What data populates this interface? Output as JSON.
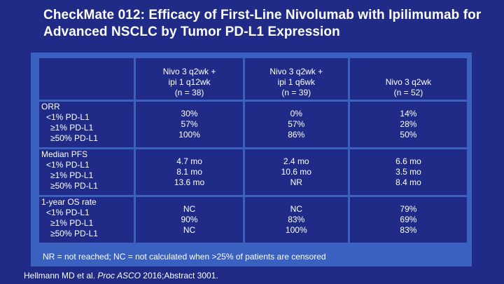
{
  "title": "CheckMate 012: Efficacy of First-Line Nivolumab with Ipilimumab for Advanced NSCLC by Tumor PD-L1 Expression",
  "columns": [
    {
      "line1": "Nivo 3 q2wk +",
      "line2": "ipi 1 q12wk",
      "line3": "(n = 38)"
    },
    {
      "line1": "Nivo 3 q2wk +",
      "line2": "ipi 1 q6wk",
      "line3": "(n = 39)"
    },
    {
      "line1": "",
      "line2": "Nivo 3 q2wk",
      "line3": "(n = 52)"
    }
  ],
  "groups": [
    {
      "title": "ORR",
      "rows": [
        "<1% PD-L1",
        "≥1% PD-L1",
        "≥50% PD-L1"
      ],
      "values": [
        [
          "30%",
          "57%",
          "100%"
        ],
        [
          "0%",
          "57%",
          "86%"
        ],
        [
          "14%",
          "28%",
          "50%"
        ]
      ]
    },
    {
      "title": "Median PFS",
      "rows": [
        "<1% PD-L1",
        "≥1% PD-L1",
        "≥50% PD-L1"
      ],
      "values": [
        [
          "4.7 mo",
          "8.1 mo",
          "13.6 mo"
        ],
        [
          "2.4 mo",
          "10.6 mo",
          "NR"
        ],
        [
          "6.6 mo",
          "3.5 mo",
          "8.4 mo"
        ]
      ]
    },
    {
      "title": "1-year OS rate",
      "rows": [
        "<1% PD-L1",
        "≥1% PD-L1",
        "≥50% PD-L1"
      ],
      "values": [
        [
          "NC",
          "90%",
          "NC"
        ],
        [
          "NC",
          "83%",
          "100%"
        ],
        [
          "79%",
          "69%",
          "83%"
        ]
      ]
    }
  ],
  "footnote": "NR = not reached; NC = not calculated when >25% of patients are censored",
  "citation": {
    "authors": "Hellmann MD et al. ",
    "journal": "Proc ASCO",
    "rest": " 2016;Abstract 3001."
  }
}
